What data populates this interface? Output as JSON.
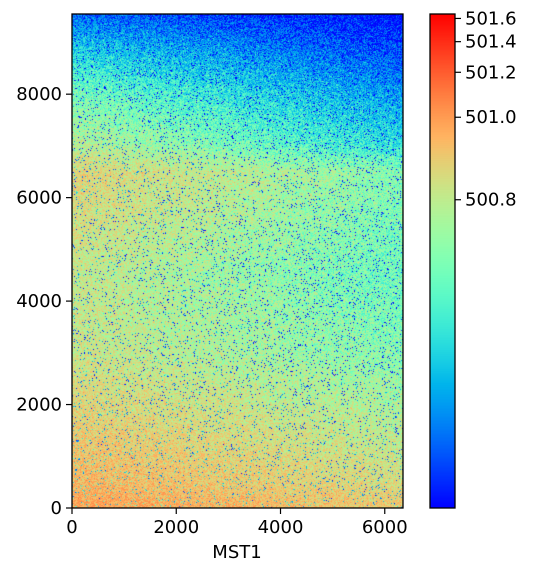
{
  "chart_data": {
    "type": "heatmap",
    "title": "",
    "xlabel": "MST1",
    "ylabel": "",
    "xlim": [
      0,
      6350
    ],
    "ylim": [
      0,
      9550
    ],
    "x_ticks": [
      0,
      2000,
      4000,
      6000
    ],
    "y_ticks": [
      0,
      2000,
      4000,
      6000,
      8000
    ],
    "colormap": "rainbow",
    "colorbar": {
      "scale": "nonlinear",
      "ticks": [
        500.8,
        501.0,
        501.2,
        501.4,
        501.6
      ],
      "tick_labels": [
        "500.8",
        "501.0",
        "501.2",
        "501.4",
        "501.6"
      ]
    },
    "value_profile": {
      "y": [
        0,
        500,
        1500,
        3000,
        4500,
        5500,
        6500,
        7000,
        8000,
        9000,
        9550
      ],
      "mean_left": [
        501.0,
        500.95,
        500.9,
        500.83,
        500.82,
        500.85,
        500.88,
        500.8,
        500.7,
        500.55,
        500.45
      ],
      "mean_right": [
        500.9,
        500.85,
        500.8,
        500.72,
        500.68,
        500.7,
        500.72,
        500.6,
        500.5,
        500.4,
        500.35
      ]
    },
    "grid": false
  }
}
